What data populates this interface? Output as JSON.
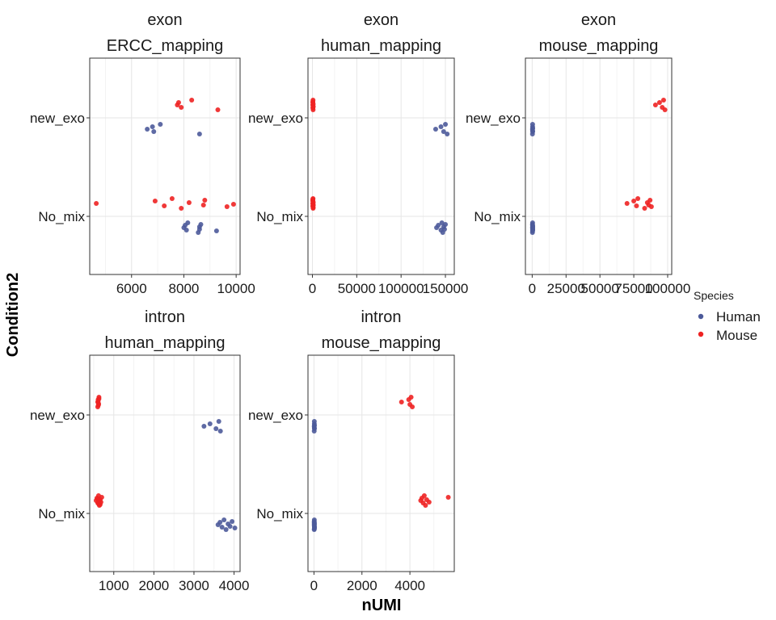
{
  "chart_data": {
    "type": "scatter",
    "xlabel": "nUMI",
    "ylabel": "Condition2",
    "categories": [
      "new_exo",
      "No_mix"
    ],
    "legend": {
      "title": "Species",
      "position": "right",
      "items": [
        {
          "name": "Human",
          "color": "#4C5A9A"
        },
        {
          "name": "Mouse",
          "color": "#EE2222"
        }
      ]
    },
    "colors": {
      "Human": "#4C5A9A",
      "Mouse": "#EE2222"
    },
    "grid": true,
    "panels": [
      {
        "strip": [
          "exon",
          "ERCC_mapping"
        ],
        "xlim": [
          4400,
          10150
        ],
        "xticks": [
          {
            "v": 6000,
            "label": "6000"
          },
          {
            "v": 8000,
            "label": "8000"
          },
          {
            "v": 10000,
            "label": "10000"
          }
        ],
        "minor": [
          5000,
          7000,
          9000
        ],
        "points": {
          "new_exo": {
            "Mouse": [
              7750,
              7800,
              7900,
              8300,
              9300
            ],
            "Human": [
              6600,
              6800,
              6850,
              7100,
              8600
            ]
          },
          "No_mix": {
            "Mouse": [
              4650,
              6900,
              7250,
              7550,
              7900,
              8200,
              8750,
              8800,
              9650,
              9900
            ],
            "Human": [
              8000,
              8050,
              8100,
              8150,
              8550,
              8600,
              8600,
              8650,
              9250
            ]
          }
        }
      },
      {
        "strip": [
          "exon",
          "human_mapping"
        ],
        "xlim": [
          -5000,
          160000
        ],
        "xticks": [
          {
            "v": 0,
            "label": "0"
          },
          {
            "v": 50000,
            "label": "50000"
          },
          {
            "v": 100000,
            "label": "100000"
          },
          {
            "v": 150000,
            "label": "150000"
          }
        ],
        "minor": [
          25000,
          75000,
          125000
        ],
        "points": {
          "new_exo": {
            "Mouse": [
              400,
              500,
              600,
              700,
              800,
              900,
              1000,
              500,
              600
            ],
            "Human": [
              139000,
              145000,
              148000,
              150000,
              152000
            ]
          },
          "No_mix": {
            "Mouse": [
              400,
              500,
              600,
              700,
              800,
              900,
              1000,
              500,
              600,
              700,
              800,
              900,
              500,
              600
            ],
            "Human": [
              140000,
              142000,
              145000,
              146000,
              147000,
              148000,
              149000,
              150000
            ]
          }
        }
      },
      {
        "strip": [
          "exon",
          "mouse_mapping"
        ],
        "xlim": [
          -5000,
          103000
        ],
        "xticks": [
          {
            "v": 0,
            "label": "0"
          },
          {
            "v": 25000,
            "label": "25000"
          },
          {
            "v": 50000,
            "label": "50000"
          },
          {
            "v": 75000,
            "label": "75000"
          },
          {
            "v": 100000,
            "label": "100000"
          }
        ],
        "minor": [
          12500,
          37500,
          62500,
          87500
        ],
        "points": {
          "new_exo": {
            "Mouse": [
              91000,
              94000,
              96000,
              97000,
              98000
            ],
            "Human": [
              200,
              300,
              400,
              300,
              200,
              400,
              300
            ]
          },
          "No_mix": {
            "Mouse": [
              70000,
              75000,
              77000,
              78000,
              83000,
              85000,
              86000,
              87000,
              88000
            ],
            "Human": [
              200,
              300,
              400,
              300,
              200,
              400,
              300,
              200,
              300,
              400,
              300
            ]
          }
        }
      },
      {
        "strip": [
          "intron",
          "human_mapping"
        ],
        "xlim": [
          400,
          4150
        ],
        "xticks": [
          {
            "v": 1000,
            "label": "1000"
          },
          {
            "v": 2000,
            "label": "2000"
          },
          {
            "v": 3000,
            "label": "3000"
          },
          {
            "v": 4000,
            "label": "4000"
          }
        ],
        "minor": [
          500,
          1500,
          2500,
          3500
        ],
        "points": {
          "new_exo": {
            "Mouse": [
              600,
              610,
              620,
              630,
              600,
              610,
              620,
              630,
              615
            ],
            "Human": [
              3250,
              3400,
              3550,
              3620,
              3660
            ]
          },
          "No_mix": {
            "Mouse": [
              560,
              580,
              600,
              620,
              640,
              660,
              680,
              700,
              620,
              640,
              600,
              660
            ],
            "Human": [
              3600,
              3650,
              3700,
              3750,
              3800,
              3850,
              3900,
              3950,
              4020
            ]
          }
        }
      },
      {
        "strip": [
          "intron",
          "mouse_mapping"
        ],
        "xlim": [
          -250,
          5850
        ],
        "xticks": [
          {
            "v": 0,
            "label": "0"
          },
          {
            "v": 2000,
            "label": "2000"
          },
          {
            "v": 4000,
            "label": "4000"
          }
        ],
        "minor": [
          1000,
          3000,
          5000
        ],
        "points": {
          "new_exo": {
            "Mouse": [
              3650,
              3950,
              4000,
              4050,
              4100
            ],
            "Human": [
              10,
              15,
              20,
              15,
              10,
              20,
              15
            ]
          },
          "No_mix": {
            "Mouse": [
              4450,
              4500,
              4550,
              4600,
              4650,
              4700,
              4800,
              5600
            ],
            "Human": [
              10,
              15,
              20,
              15,
              10,
              20,
              15,
              10,
              20,
              15,
              10,
              15
            ]
          }
        }
      }
    ]
  }
}
